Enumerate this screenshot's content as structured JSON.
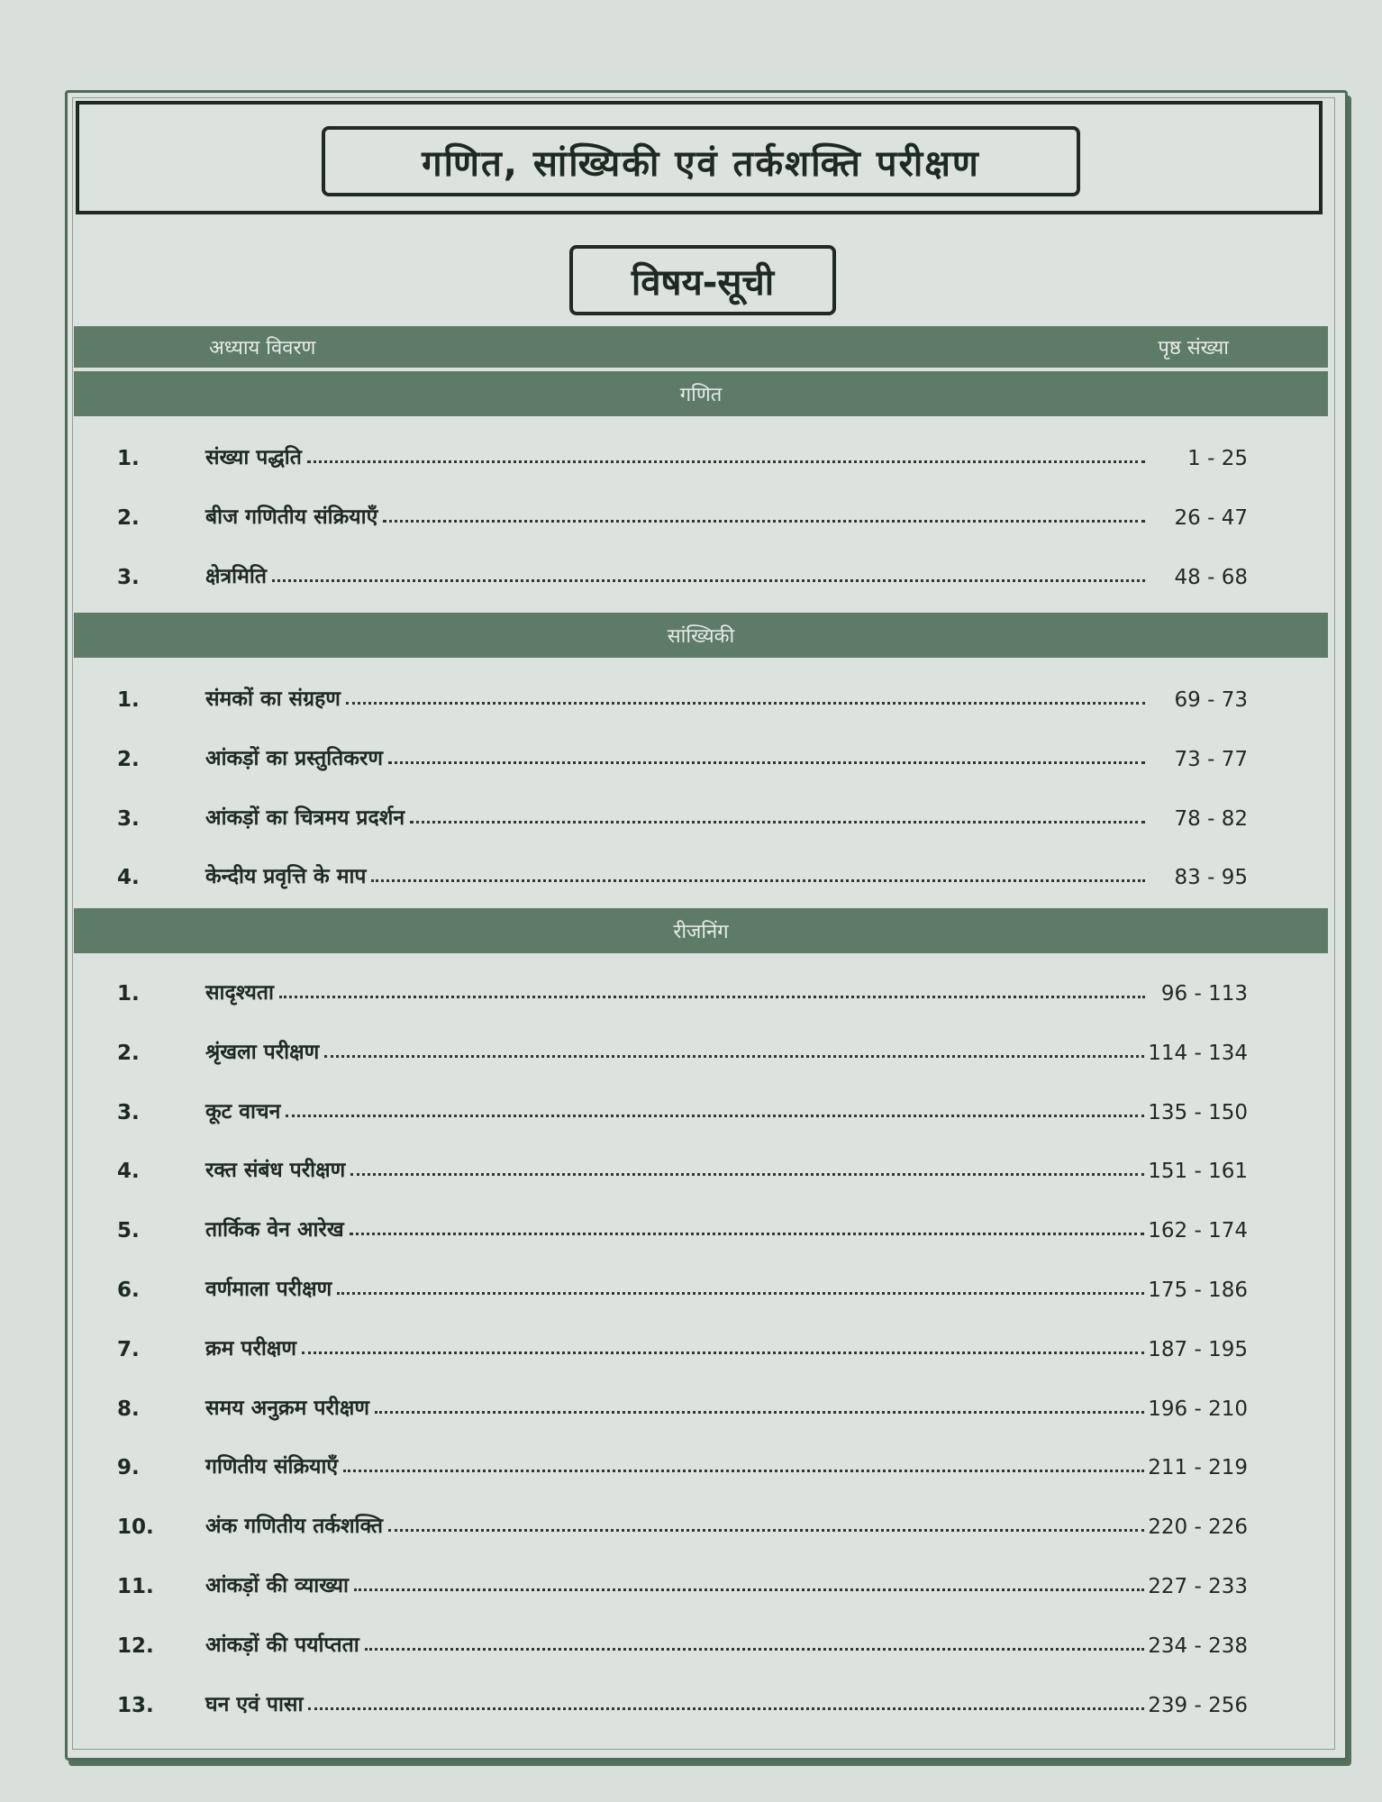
{
  "header": {
    "title": "गणित, सांख्यिकी एवं तर्कशक्ति परीक्षण",
    "subtitle": "विषय-सूची"
  },
  "columns": {
    "chapter": "अध्याय विवरण",
    "pages": "पृष्ठ संख्या"
  },
  "sections": [
    {
      "name": "गणित",
      "items": [
        {
          "num": "1.",
          "title": "संख्या पद्धति",
          "pages": "1 - 25"
        },
        {
          "num": "2.",
          "title": "बीज गणितीय संक्रियाएँ",
          "pages": "26 - 47"
        },
        {
          "num": "3.",
          "title": "क्षेत्रमिति",
          "pages": "48 - 68"
        }
      ]
    },
    {
      "name": "सांख्यिकी",
      "items": [
        {
          "num": "1.",
          "title": "संमकों का संग्रहण",
          "pages": "69 - 73"
        },
        {
          "num": "2.",
          "title": "आंकड़ों का प्रस्तुतिकरण",
          "pages": "73 - 77"
        },
        {
          "num": "3.",
          "title": "आंकड़ों का चित्रमय प्रदर्शन",
          "pages": "78 - 82"
        },
        {
          "num": "4.",
          "title": "केन्दीय प्रवृत्ति के माप",
          "pages": "83 - 95"
        }
      ]
    },
    {
      "name": "रीजनिंग",
      "items": [
        {
          "num": "1.",
          "title": "सादृश्यता",
          "pages": "96 - 113"
        },
        {
          "num": "2.",
          "title": "श्रृंखला परीक्षण",
          "pages": "114 - 134"
        },
        {
          "num": "3.",
          "title": "कूट वाचन",
          "pages": "135 - 150"
        },
        {
          "num": "4.",
          "title": "रक्त संबंध परीक्षण",
          "pages": "151 - 161"
        },
        {
          "num": "5.",
          "title": "तार्किक वेन आरेख",
          "pages": "162 - 174"
        },
        {
          "num": "6.",
          "title": "वर्णमाला परीक्षण",
          "pages": "175 - 186"
        },
        {
          "num": "7.",
          "title": "क्रम परीक्षण",
          "pages": "187 - 195"
        },
        {
          "num": "8.",
          "title": "समय अनुक्रम परीक्षण",
          "pages": "196 - 210"
        },
        {
          "num": "9.",
          "title": "गणितीय संक्रियाएँ",
          "pages": "211 - 219"
        },
        {
          "num": "10.",
          "title": "अंक गणितीय तर्कशक्ति",
          "pages": "220 - 226"
        },
        {
          "num": "11.",
          "title": "आंकड़ों की व्याख्या",
          "pages": "227 - 233"
        },
        {
          "num": "12.",
          "title": "आंकड़ों की पर्याप्तता",
          "pages": "234 - 238"
        },
        {
          "num": "13.",
          "title": "घन एवं पासा",
          "pages": "239 - 256"
        }
      ]
    }
  ],
  "colors": {
    "bar": "#5e7b67",
    "paper": "#d9dfda",
    "ink": "#1d2a22"
  }
}
